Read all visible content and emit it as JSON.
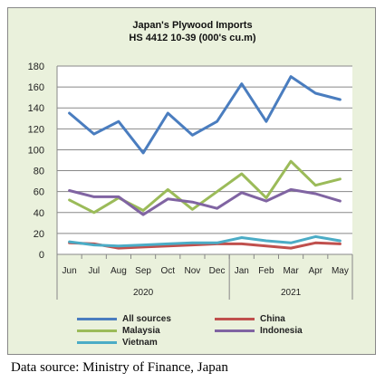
{
  "chart_data": {
    "type": "line",
    "title": [
      "Japan's Plywood Imports",
      "HS 4412 10-39 (000's cu.m)"
    ],
    "categories": [
      "Jun",
      "Jul",
      "Aug",
      "Sep",
      "Oct",
      "Nov",
      "Dec",
      "Jan",
      "Feb",
      "Mar",
      "Apr",
      "May"
    ],
    "year_groups": [
      {
        "label": "2020",
        "start": 0,
        "end": 6
      },
      {
        "label": "2021",
        "start": 7,
        "end": 11
      }
    ],
    "ylim": [
      0,
      180
    ],
    "yticks": [
      0,
      20,
      40,
      60,
      80,
      100,
      120,
      140,
      160,
      180
    ],
    "grid": true,
    "legend_position": "bottom",
    "series": [
      {
        "name": "All sources",
        "color": "#4a7dbf",
        "values": [
          135,
          115,
          127,
          97,
          135,
          114,
          127,
          163,
          127,
          170,
          154,
          148
        ]
      },
      {
        "name": "China",
        "color": "#c0504d",
        "values": [
          11,
          10,
          6,
          7,
          8,
          9,
          10,
          10,
          8,
          6,
          11,
          10
        ]
      },
      {
        "name": "Malaysia",
        "color": "#9bbb59",
        "values": [
          52,
          40,
          54,
          42,
          62,
          43,
          60,
          77,
          54,
          89,
          66,
          72
        ]
      },
      {
        "name": "Indonesia",
        "color": "#8064a2",
        "values": [
          61,
          55,
          55,
          38,
          53,
          50,
          44,
          59,
          51,
          62,
          58,
          51
        ]
      },
      {
        "name": "Vietnam",
        "color": "#4bacc6",
        "values": [
          12,
          9,
          8,
          9,
          10,
          11,
          11,
          16,
          13,
          11,
          17,
          13
        ]
      }
    ]
  },
  "source_note": "Data source: Ministry of Finance, Japan"
}
